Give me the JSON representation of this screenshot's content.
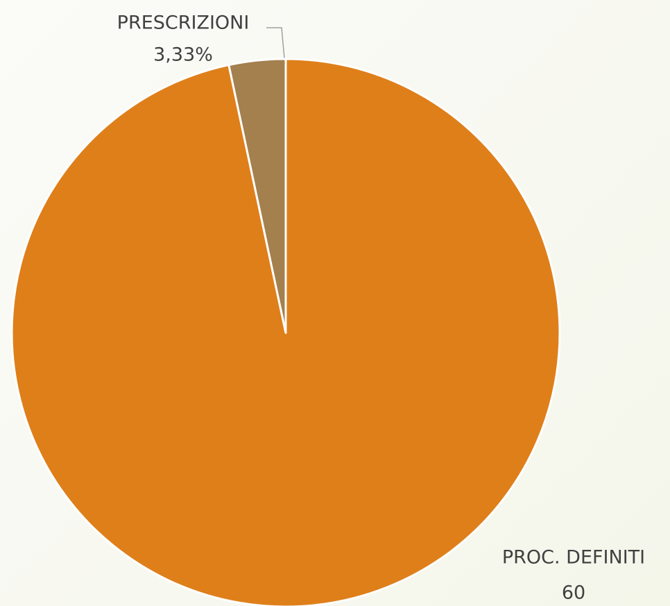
{
  "chart_data": {
    "type": "pie",
    "categories": [
      "PROC. DEFINITI",
      "PRESCRIZIONI"
    ],
    "values": [
      60,
      2.07
    ],
    "value_labels": [
      "60",
      "3,33%"
    ],
    "colors": [
      "#df7f1a",
      "#a4804f"
    ]
  }
}
